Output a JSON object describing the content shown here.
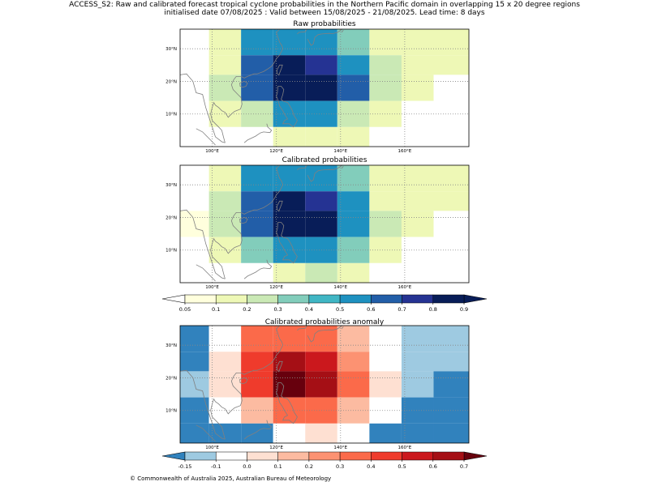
{
  "header": {
    "title_line1": "ACCESS_S2: Raw and calibrated forecast tropical cyclone probabilities in the Northern Pacific domain in overlapping 15 x 20 degree regions",
    "title_line2": "initialised date 07/08/2025 :  Valid between 15/08/2025 - 21/08/2025. Lead time: 8 days"
  },
  "footer": "© Commonwealth of Australia 2025, Australian Bureau of Meteorology",
  "colors": {
    "prob_scale": [
      "#ffffdd",
      "#eef8b6",
      "#cae9b5",
      "#82cdbb",
      "#40b6c4",
      "#1e91c0",
      "#225ea8",
      "#253393",
      "#081d58"
    ],
    "prob_under": "#ffffff",
    "prob_over": "#081d58",
    "anom_scale": [
      "#3182bd",
      "#9ecae1",
      "#ffffff",
      "#fee0d2",
      "#fcbba1",
      "#fc9272",
      "#fb6a4a",
      "#ef3b2c",
      "#cb181d",
      "#a50f15"
    ],
    "anom_over": "#67000d",
    "coastline": "#808080",
    "grid": "#888888"
  },
  "chart_data": [
    {
      "type": "heatmap",
      "title": "Raw probabilities",
      "xlim": [
        90,
        180
      ],
      "ylim": [
        0,
        36
      ],
      "xticks": [
        100,
        120,
        140,
        160
      ],
      "xtick_labels": [
        "100°E",
        "120°E",
        "140°E",
        "160°E"
      ],
      "yticks": [
        10,
        20,
        30
      ],
      "ytick_labels": [
        "10°N",
        "20°N",
        "30°N"
      ],
      "grid": true,
      "x_edges": [
        90,
        99,
        109,
        119,
        129,
        139,
        149,
        159,
        169,
        180
      ],
      "y_edges": [
        0,
        6,
        14,
        22,
        28,
        36
      ],
      "values_top_to_bottom": [
        [
          0.0,
          0.15,
          0.55,
          0.55,
          0.55,
          0.35,
          0.15,
          0.1,
          0.15
        ],
        [
          0.0,
          0.15,
          0.6,
          0.85,
          0.7,
          0.5,
          0.25,
          0.1,
          0.15
        ],
        [
          0.0,
          0.25,
          0.6,
          0.95,
          0.85,
          0.6,
          0.25,
          0.1,
          0.0
        ],
        [
          0.0,
          0.1,
          0.25,
          0.5,
          0.5,
          0.25,
          0.1,
          0.0,
          0.0
        ],
        [
          0.0,
          0.0,
          0.0,
          0.15,
          0.15,
          0.15,
          0.0,
          0.0,
          0.0
        ]
      ]
    },
    {
      "type": "heatmap",
      "title": "Calibrated probabilities",
      "xlim": [
        90,
        180
      ],
      "ylim": [
        0,
        36
      ],
      "xticks": [
        100,
        120,
        140,
        160
      ],
      "xtick_labels": [
        "100°E",
        "120°E",
        "140°E",
        "160°E"
      ],
      "yticks": [
        10,
        20,
        30
      ],
      "ytick_labels": [
        "10°N",
        "20°N",
        "30°N"
      ],
      "grid": true,
      "x_edges": [
        90,
        99,
        109,
        119,
        129,
        139,
        149,
        159,
        169,
        180
      ],
      "y_edges": [
        0,
        6,
        14,
        22,
        28,
        36
      ],
      "values_top_to_bottom": [
        [
          0.0,
          0.15,
          0.55,
          0.55,
          0.55,
          0.35,
          0.15,
          0.1,
          0.1
        ],
        [
          0.0,
          0.25,
          0.65,
          0.85,
          0.75,
          0.5,
          0.15,
          0.1,
          0.1
        ],
        [
          0.08,
          0.25,
          0.65,
          0.95,
          0.85,
          0.55,
          0.25,
          0.1,
          0.0
        ],
        [
          0.0,
          0.15,
          0.35,
          0.55,
          0.55,
          0.35,
          0.15,
          0.0,
          0.0
        ],
        [
          0.0,
          0.0,
          0.0,
          0.1,
          0.25,
          0.15,
          0.0,
          0.0,
          0.0
        ]
      ]
    },
    {
      "type": "heatmap",
      "title": "Calibrated probabilities anomaly",
      "xlim": [
        90,
        180
      ],
      "ylim": [
        0,
        36
      ],
      "xticks": [
        100,
        120,
        140,
        160
      ],
      "xtick_labels": [
        "100°E",
        "120°E",
        "140°E",
        "160°E"
      ],
      "yticks": [
        10,
        20,
        30
      ],
      "ytick_labels": [
        "10°N",
        "20°N",
        "30°N"
      ],
      "grid": true,
      "x_edges": [
        90,
        99,
        109,
        119,
        129,
        139,
        149,
        159,
        169,
        180
      ],
      "y_edges": [
        0,
        6,
        14,
        22,
        28,
        36
      ],
      "values_top_to_bottom": [
        [
          -0.2,
          -0.05,
          0.35,
          0.35,
          0.35,
          0.15,
          -0.05,
          -0.12,
          -0.12
        ],
        [
          -0.2,
          0.05,
          0.45,
          0.65,
          0.55,
          0.25,
          -0.05,
          -0.12,
          -0.12
        ],
        [
          -0.12,
          0.05,
          0.45,
          0.75,
          0.65,
          0.35,
          0.05,
          -0.12,
          -0.2
        ],
        [
          -0.2,
          -0.05,
          0.15,
          0.35,
          0.35,
          0.15,
          -0.05,
          -0.2,
          -0.2
        ],
        [
          -0.2,
          -0.2,
          -0.2,
          -0.05,
          0.05,
          -0.05,
          -0.2,
          -0.2,
          -0.2
        ]
      ]
    }
  ],
  "colorbars": [
    {
      "name": "probability",
      "bounds": [
        0.05,
        0.1,
        0.2,
        0.3,
        0.4,
        0.5,
        0.6,
        0.7,
        0.8,
        0.9
      ],
      "tick_labels": [
        "0.05",
        "0.1",
        "0.2",
        "0.3",
        "0.4",
        "0.5",
        "0.6",
        "0.7",
        "0.8",
        "0.9"
      ]
    },
    {
      "name": "anomaly",
      "bounds": [
        -0.15,
        -0.1,
        0.0,
        0.1,
        0.2,
        0.3,
        0.4,
        0.5,
        0.6,
        0.7
      ],
      "tick_labels": [
        "-0.15",
        "-0.1",
        "0.0",
        "0.1",
        "0.2",
        "0.3",
        "0.4",
        "0.5",
        "0.6",
        "0.7"
      ]
    }
  ]
}
